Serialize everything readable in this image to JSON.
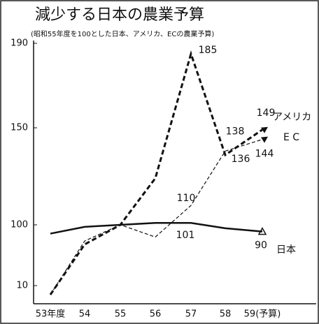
{
  "chart_data": {
    "type": "line",
    "title": "減少する日本の農業予算",
    "subtitle": "(昭和55年度を100とした日本、アメリカ、ECの農業予算)",
    "categories": [
      "53年度",
      "54",
      "55",
      "56",
      "57",
      "58",
      "59(予算)"
    ],
    "ylim": [
      0,
      190
    ],
    "yticks": [
      10,
      100,
      150,
      190
    ],
    "series": [
      {
        "name": "日本",
        "color": "#111111",
        "style": "solid",
        "values": [
          87,
          97,
          100,
          101,
          101,
          95,
          90
        ],
        "value_labels": [
          null,
          null,
          null,
          null,
          "101",
          null,
          "90"
        ]
      },
      {
        "name": "アメリカ",
        "color": "#111111",
        "style": "bold-dash",
        "values": [
          5,
          71,
          100,
          124,
          185,
          136,
          149
        ],
        "value_labels": [
          null,
          null,
          null,
          null,
          "185",
          "136",
          "149"
        ]
      },
      {
        "name": "E C",
        "color": "#111111",
        "style": "thin-dash",
        "values": [
          5,
          76,
          100,
          82,
          110,
          138,
          144
        ],
        "value_labels": [
          null,
          null,
          null,
          null,
          "110",
          "138",
          "144"
        ]
      }
    ]
  }
}
